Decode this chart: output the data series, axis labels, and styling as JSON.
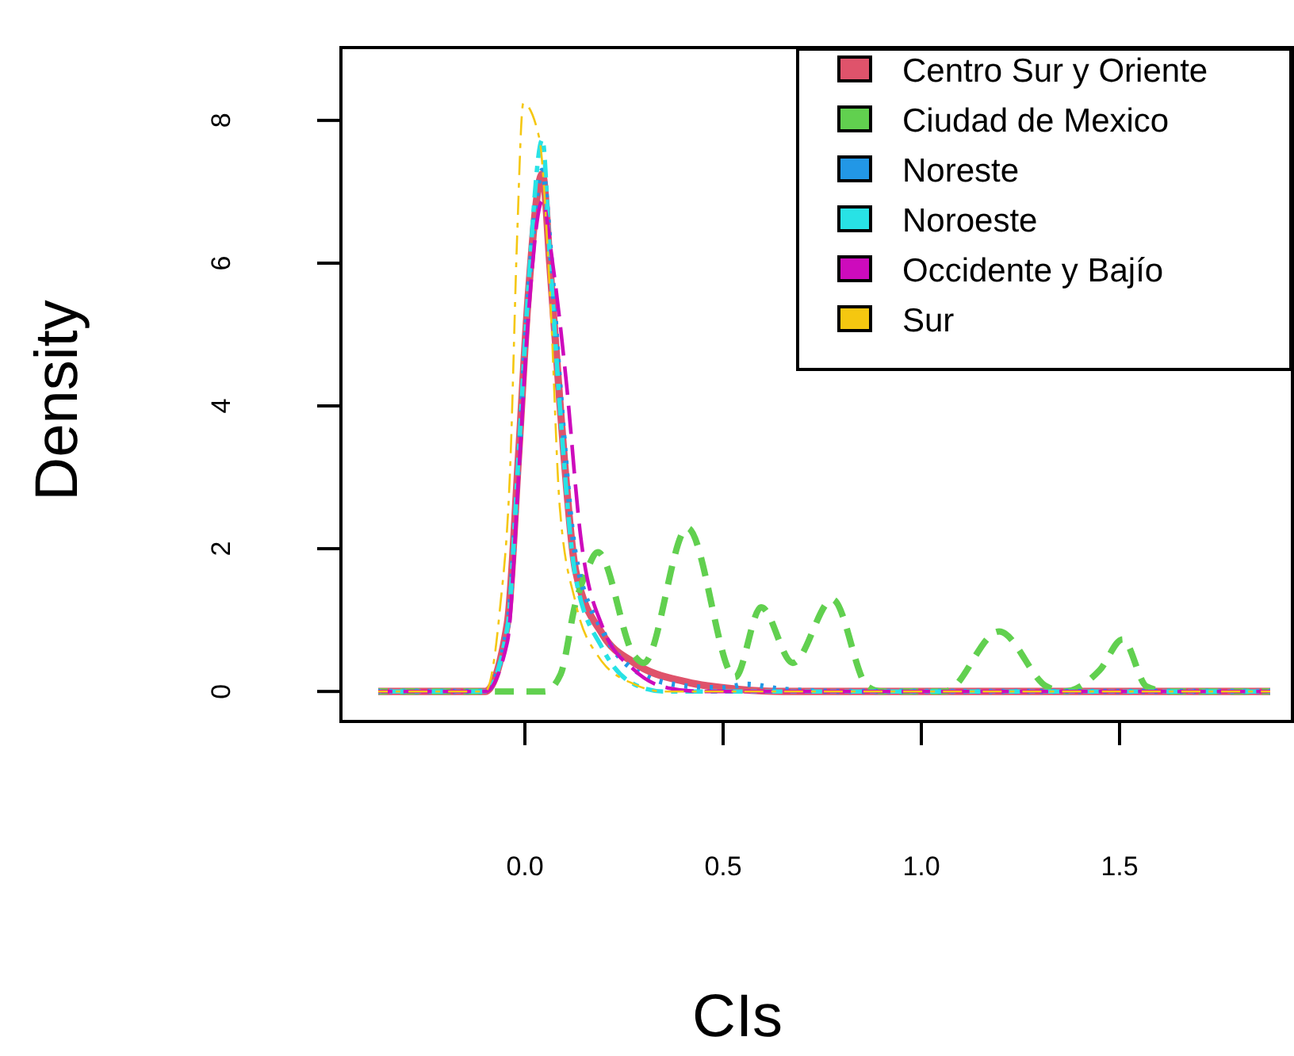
{
  "chart_data": {
    "type": "line",
    "xlabel": "CIs",
    "ylabel": "Density",
    "xlim": [
      -0.464,
      1.936
    ],
    "ylim": [
      -0.42,
      9.02
    ],
    "xticks": [
      {
        "value": 0,
        "label": "0.0"
      },
      {
        "value": 0.5,
        "label": "0.5"
      },
      {
        "value": 1,
        "label": "1.0"
      },
      {
        "value": 1.5,
        "label": "1.5"
      }
    ],
    "yticks": [
      0,
      2,
      4,
      6,
      8
    ],
    "grid": false,
    "legend": "top right",
    "marker": "none",
    "series": [
      {
        "name": "Centro Sur y Oriente",
        "color": "#df536b",
        "line_style": "solid",
        "x": [
          -0.37,
          -0.1,
          -0.044,
          -0.016,
          0.008,
          0.044,
          0.064,
          0.088,
          0.128,
          0.196,
          0.276,
          0.41,
          0.54,
          0.65,
          1.88
        ],
        "values": [
          0,
          0,
          0.96,
          3.3,
          5.5,
          7.25,
          5.9,
          4.07,
          1.69,
          0.8,
          0.4,
          0.13,
          0.03,
          0,
          0
        ]
      },
      {
        "name": "Ciudad de Mexico",
        "color": "#61d04f",
        "line_style": "dashed",
        "x": [
          -0.37,
          0.05,
          0.09,
          0.128,
          0.156,
          0.184,
          0.276,
          0.3,
          0.41,
          0.53,
          0.596,
          0.676,
          0.776,
          0.864,
          0.9,
          1.06,
          1.196,
          1.316,
          1.36,
          1.45,
          1.508,
          1.568,
          1.62,
          1.88
        ],
        "values": [
          0,
          0,
          0.24,
          1.24,
          1.69,
          1.95,
          0.5,
          0.4,
          2.29,
          0.2,
          1.18,
          0.4,
          1.29,
          0.07,
          0,
          0,
          0.84,
          0.07,
          0,
          0.3,
          0.73,
          0.07,
          0,
          0
        ]
      },
      {
        "name": "Noreste",
        "color": "#2297e6",
        "line_style": "dotted",
        "x": [
          -0.37,
          -0.1,
          -0.044,
          -0.016,
          0.008,
          0.044,
          0.064,
          0.088,
          0.128,
          0.196,
          0.276,
          0.4,
          0.5,
          0.56,
          0.65,
          0.8,
          1.88
        ],
        "values": [
          0,
          0,
          0.9,
          3.2,
          5.5,
          7.3,
          6.2,
          4.3,
          1.9,
          0.85,
          0.3,
          0.08,
          0.05,
          0.1,
          0.03,
          0,
          0
        ]
      },
      {
        "name": "Noroeste",
        "color": "#28e2e5",
        "line_style": "dashed",
        "x": [
          -0.37,
          -0.1,
          -0.044,
          -0.016,
          0.008,
          0.044,
          0.064,
          0.088,
          0.128,
          0.196,
          0.276,
          0.35,
          0.45,
          1.88
        ],
        "values": [
          0,
          0,
          0.9,
          3.3,
          5.6,
          7.73,
          6.0,
          4.0,
          1.6,
          0.6,
          0.1,
          0,
          0,
          0
        ]
      },
      {
        "name": "Occidente y Bajío",
        "color": "#cd0bbc",
        "line_style": "dashed",
        "x": [
          -0.37,
          -0.1,
          -0.044,
          -0.016,
          0.008,
          0.044,
          0.07,
          0.104,
          0.14,
          0.196,
          0.276,
          0.36,
          0.45,
          1.88
        ],
        "values": [
          0,
          0,
          0.7,
          3.0,
          5.2,
          6.87,
          6.0,
          4.36,
          2.2,
          0.9,
          0.3,
          0.05,
          0,
          0
        ]
      },
      {
        "name": "Sur",
        "color": "#f5c710",
        "line_style": "dashed",
        "x": [
          -0.37,
          -0.1,
          -0.064,
          -0.036,
          -0.02,
          -0.004,
          0.036,
          0.064,
          0.088,
          0.128,
          0.184,
          0.276,
          0.35,
          1.88
        ],
        "values": [
          0,
          0,
          1.1,
          3.3,
          6.3,
          8.24,
          7.76,
          5.5,
          2.58,
          1.24,
          0.5,
          0.1,
          0,
          0
        ]
      }
    ]
  }
}
